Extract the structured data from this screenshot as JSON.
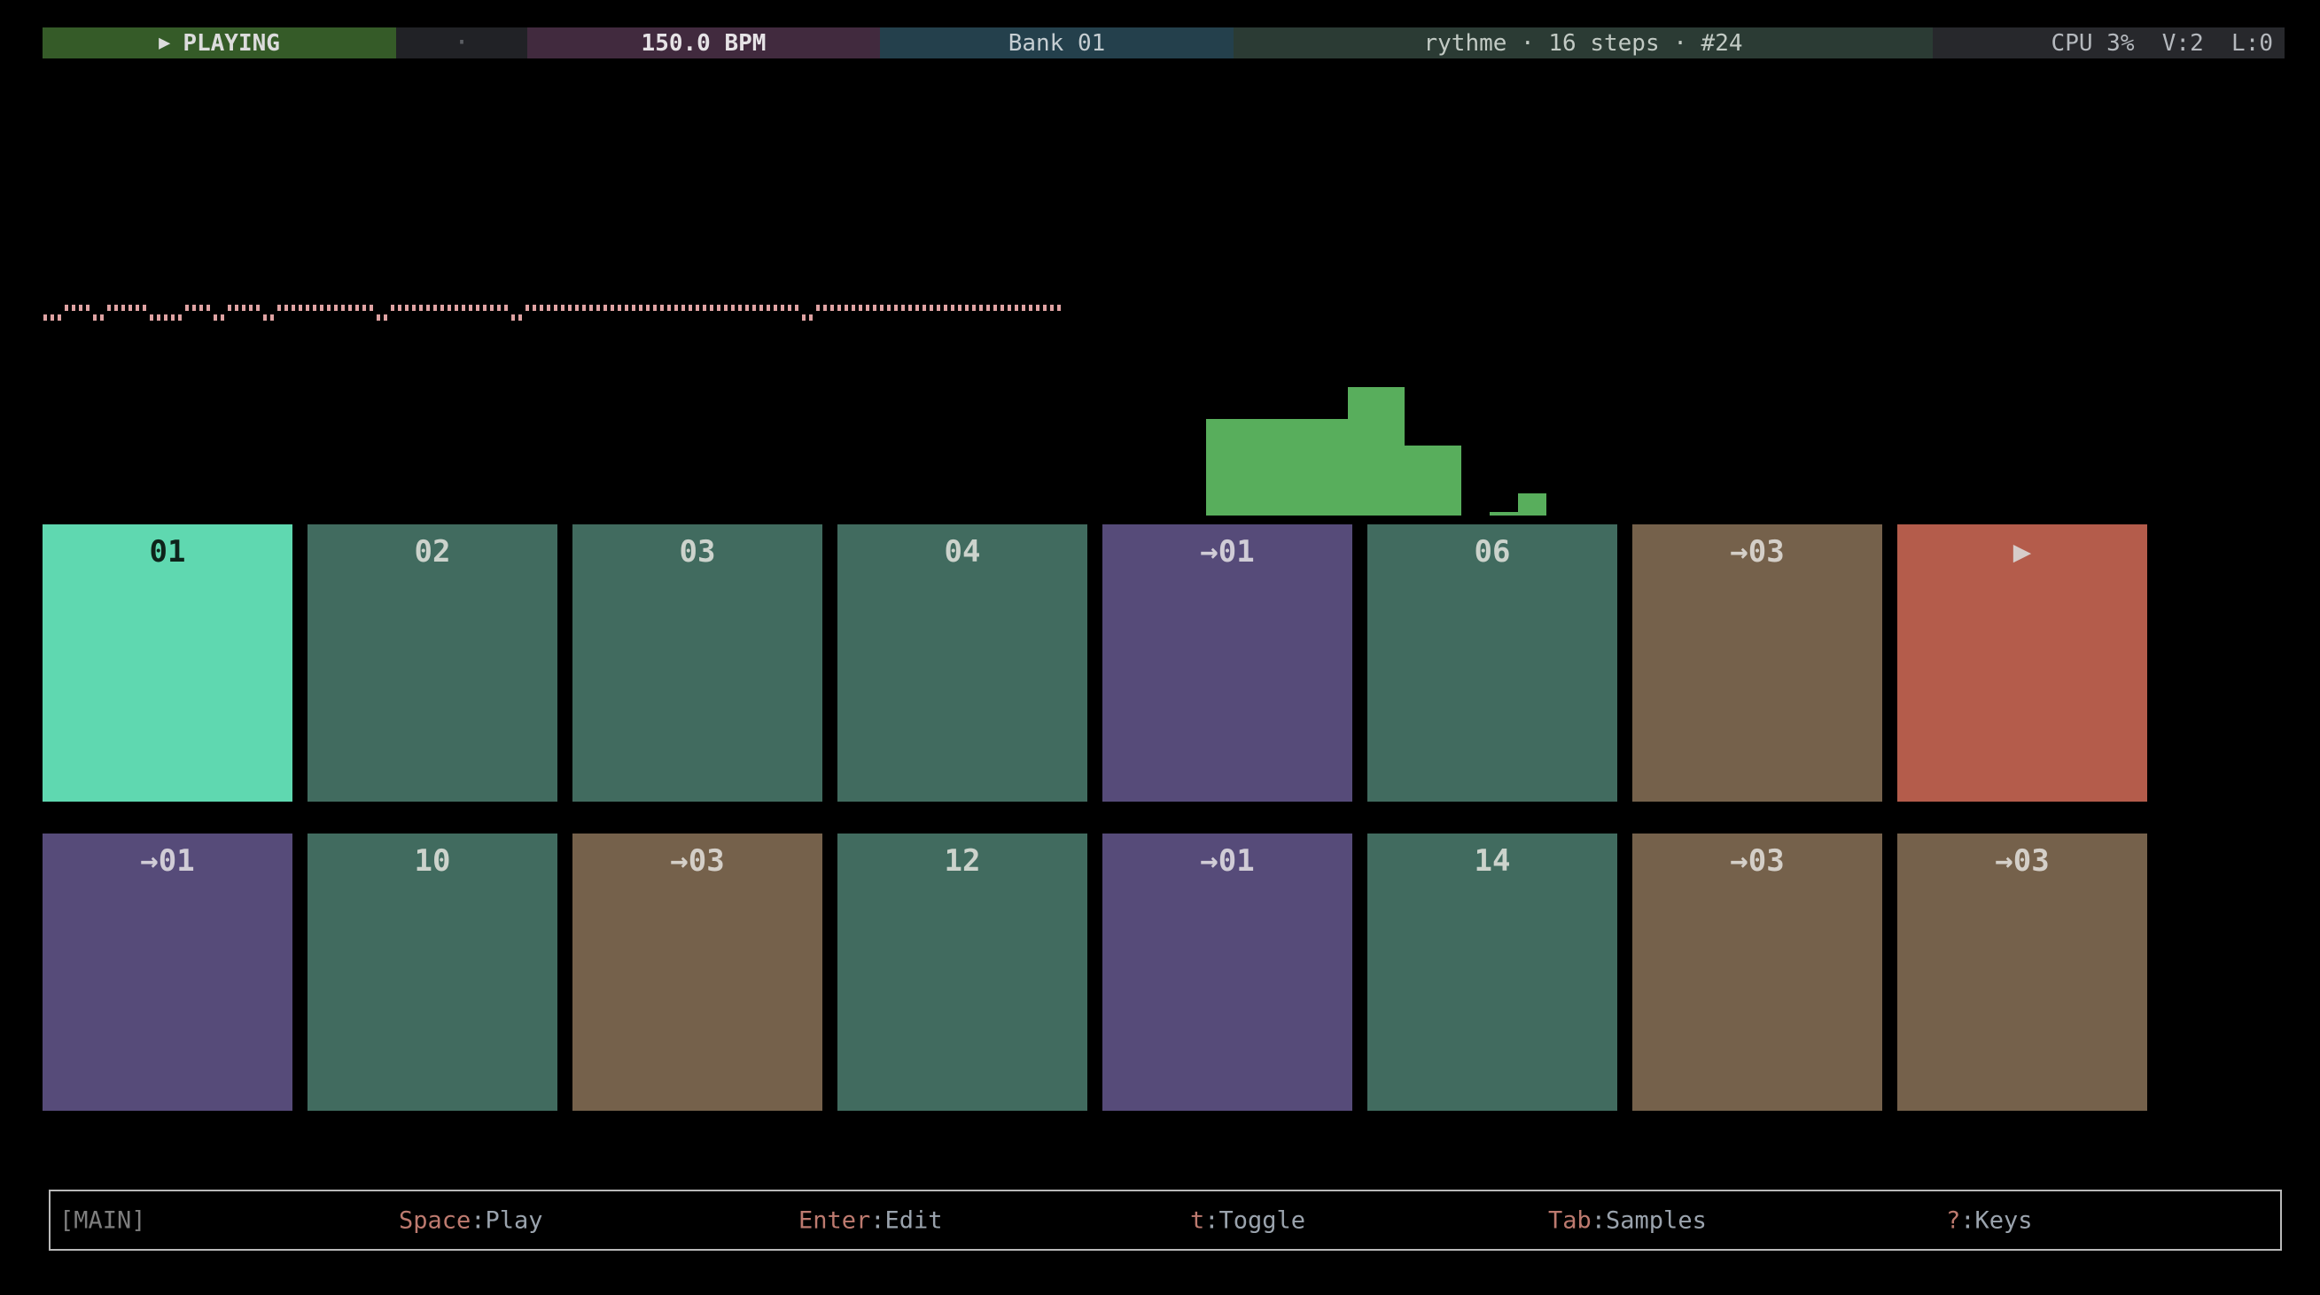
{
  "topbar": {
    "playing": {
      "icon": "▶",
      "label": "PLAYING"
    },
    "tick": "·",
    "bpm": "150.0 BPM",
    "bank": "Bank 01",
    "track_info": "rythme · 16 steps · #24",
    "stats": "CPU 3%  V:2  L:0"
  },
  "waveform": {
    "segments": [
      [
        0,
        3
      ],
      [
        1,
        4
      ],
      [
        0,
        2
      ],
      [
        1,
        6
      ],
      [
        0,
        5
      ],
      [
        1,
        4
      ],
      [
        0,
        2
      ],
      [
        1,
        5
      ],
      [
        0,
        2
      ],
      [
        1,
        14
      ],
      [
        0,
        2
      ],
      [
        1,
        17
      ],
      [
        0,
        2
      ],
      [
        1,
        39
      ],
      [
        0,
        2
      ],
      [
        1,
        35
      ]
    ]
  },
  "meter": {
    "bar_heights": [
      109,
      109,
      109,
      109,
      109,
      145,
      145,
      79,
      79,
      0,
      4,
      25
    ]
  },
  "pads": {
    "rows": [
      [
        {
          "label": "01",
          "variant": "active"
        },
        {
          "label": "02",
          "variant": "teal"
        },
        {
          "label": "03",
          "variant": "teal"
        },
        {
          "label": "04",
          "variant": "teal"
        },
        {
          "label": "→01",
          "variant": "purple"
        },
        {
          "label": "06",
          "variant": "teal"
        },
        {
          "label": "→03",
          "variant": "brown"
        },
        {
          "label": "▶",
          "variant": "red"
        }
      ],
      [
        {
          "label": "→01",
          "variant": "purple"
        },
        {
          "label": "10",
          "variant": "teal"
        },
        {
          "label": "→03",
          "variant": "brown"
        },
        {
          "label": "12",
          "variant": "teal"
        },
        {
          "label": "→01",
          "variant": "purple"
        },
        {
          "label": "14",
          "variant": "teal"
        },
        {
          "label": "→03",
          "variant": "brown"
        },
        {
          "label": "→03",
          "variant": "brown"
        }
      ]
    ]
  },
  "statusbar": {
    "mode": "[MAIN]",
    "hints": [
      {
        "key": "Space",
        "label": ":Play"
      },
      {
        "key": "Enter",
        "label": ":Edit"
      },
      {
        "key": "t",
        "label": ":Toggle"
      },
      {
        "key": "Tab",
        "label": ":Samples"
      },
      {
        "key": "?",
        "label": ":Keys"
      }
    ]
  },
  "colors": {
    "background": "#000000",
    "topbar": {
      "playing_bg": "#355b28",
      "playing_text": "#dcdcdc",
      "tick_bg": "#212226",
      "tick_text": "#5b5e63",
      "bpm_bg": "#412a3e",
      "bpm_text": "#e6e3e6",
      "bank_bg": "#24404c",
      "bank_text": "#c6ced2",
      "info_bg": "#2b3b34",
      "info_text": "#c2cac4",
      "stats_bg": "#27282c",
      "stats_text": "#b4b8bd"
    },
    "waveform_dot": "#dfa3a3",
    "meter_bar": "#58ae5c",
    "pad_variants": {
      "active": {
        "bg": "#5fd8b0",
        "text": "#0e231a"
      },
      "teal": {
        "bg": "#416b5f",
        "text": "#ccd3cc"
      },
      "purple": {
        "bg": "#564b79",
        "text": "#d0ccd6"
      },
      "brown": {
        "bg": "#75614b",
        "text": "#d4cfc8"
      },
      "red": {
        "bg": "#b45c4b",
        "text": "#d6cdca"
      }
    },
    "statusbar": {
      "border": "#b9b9b9",
      "mode_text": "#7e7e7e",
      "key_text": "#bd7a6f",
      "label_text": "#9aa3ad"
    }
  }
}
